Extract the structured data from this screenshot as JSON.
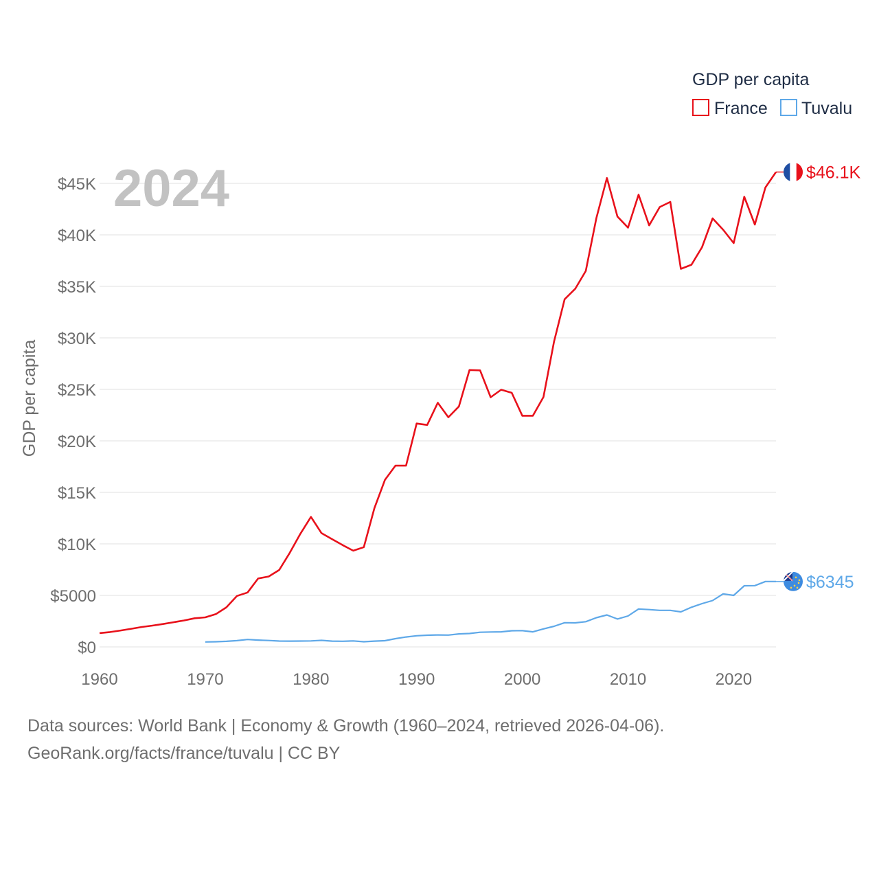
{
  "chart_data": {
    "type": "line",
    "ylabel": "GDP per capita",
    "year_label": "2024",
    "x_ticks": [
      1960,
      1970,
      1980,
      1990,
      2000,
      2010,
      2020
    ],
    "y_ticks": [
      {
        "value": 0,
        "label": "$0"
      },
      {
        "value": 5000,
        "label": "$5000"
      },
      {
        "value": 10000,
        "label": "$10K"
      },
      {
        "value": 15000,
        "label": "$15K"
      },
      {
        "value": 20000,
        "label": "$20K"
      },
      {
        "value": 25000,
        "label": "$25K"
      },
      {
        "value": 30000,
        "label": "$30K"
      },
      {
        "value": 35000,
        "label": "$35K"
      },
      {
        "value": 40000,
        "label": "$40K"
      },
      {
        "value": 45000,
        "label": "$45K"
      }
    ],
    "xlim": [
      1960,
      2024
    ],
    "ylim": [
      0,
      45000
    ],
    "legend": {
      "title": "GDP per capita",
      "position": "top-right"
    },
    "series": [
      {
        "name": "France",
        "color": "#e8111b",
        "end_label": "$46.1K",
        "flag_icon": "france-flag-icon",
        "x": [
          1960,
          1961,
          1962,
          1963,
          1964,
          1965,
          1966,
          1967,
          1968,
          1969,
          1970,
          1971,
          1972,
          1973,
          1974,
          1975,
          1976,
          1977,
          1978,
          1979,
          1980,
          1981,
          1982,
          1983,
          1984,
          1985,
          1986,
          1987,
          1988,
          1989,
          1990,
          1991,
          1992,
          1993,
          1994,
          1995,
          1996,
          1997,
          1998,
          1999,
          2000,
          2001,
          2002,
          2003,
          2004,
          2005,
          2006,
          2007,
          2008,
          2009,
          2010,
          2011,
          2012,
          2013,
          2014,
          2015,
          2016,
          2017,
          2018,
          2019,
          2020,
          2021,
          2022,
          2023,
          2024
        ],
        "values": [
          1340,
          1440,
          1590,
          1760,
          1930,
          2070,
          2220,
          2390,
          2570,
          2780,
          2870,
          3180,
          3840,
          4950,
          5280,
          6640,
          6830,
          7470,
          9140,
          10980,
          12620,
          11040,
          10460,
          9880,
          9340,
          9680,
          13470,
          16210,
          17600,
          17590,
          21690,
          21550,
          23700,
          22290,
          23350,
          26880,
          26850,
          24230,
          24970,
          24670,
          22440,
          22440,
          24260,
          29640,
          33750,
          34760,
          36490,
          41620,
          45520,
          41780,
          40700,
          43900,
          40920,
          42700,
          43200,
          36700,
          37100,
          38800,
          41600,
          40500,
          39200,
          43700,
          41000,
          44600,
          46100
        ]
      },
      {
        "name": "Tuvalu",
        "color": "#5ea8e8",
        "end_label": "$6345",
        "flag_icon": "tuvalu-flag-icon",
        "x": [
          1970,
          1971,
          1972,
          1973,
          1974,
          1975,
          1976,
          1977,
          1978,
          1979,
          1980,
          1981,
          1982,
          1983,
          1984,
          1985,
          1986,
          1987,
          1988,
          1989,
          1990,
          1991,
          1992,
          1993,
          1994,
          1995,
          1996,
          1997,
          1998,
          1999,
          2000,
          2001,
          2002,
          2003,
          2004,
          2005,
          2006,
          2007,
          2008,
          2009,
          2010,
          2011,
          2012,
          2013,
          2014,
          2015,
          2016,
          2017,
          2018,
          2019,
          2020,
          2021,
          2022,
          2023,
          2024
        ],
        "values": [
          480,
          500,
          540,
          610,
          720,
          660,
          620,
          570,
          560,
          570,
          580,
          630,
          560,
          550,
          580,
          500,
          560,
          600,
          800,
          960,
          1080,
          1130,
          1160,
          1150,
          1260,
          1300,
          1420,
          1450,
          1460,
          1570,
          1580,
          1460,
          1750,
          2000,
          2350,
          2330,
          2450,
          2830,
          3100,
          2710,
          3000,
          3680,
          3620,
          3550,
          3550,
          3400,
          3850,
          4200,
          4500,
          5150,
          5000,
          5930,
          5950,
          6345,
          6345
        ]
      }
    ]
  },
  "footer": {
    "line1": "Data sources: World Bank | Economy & Growth (1960–2024, retrieved 2026-04-06).",
    "line2": "GeoRank.org/facts/france/tuvalu | CC BY"
  }
}
